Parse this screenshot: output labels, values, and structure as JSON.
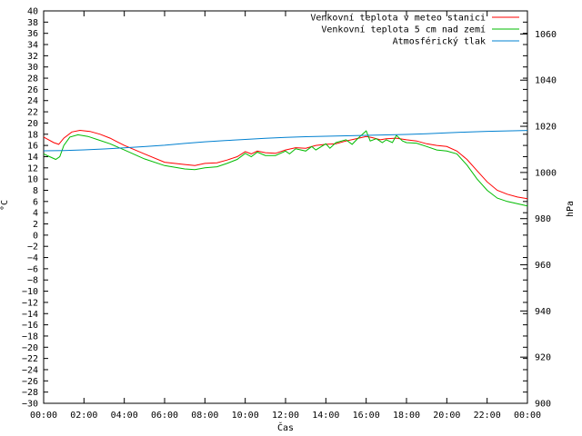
{
  "chart_data": {
    "type": "line",
    "xlabel": "Čas",
    "ylabel_left": "°C",
    "ylabel_right": "hPa",
    "x_ticks": [
      "00:00",
      "02:00",
      "04:00",
      "06:00",
      "08:00",
      "10:00",
      "12:00",
      "14:00",
      "16:00",
      "18:00",
      "20:00",
      "22:00",
      "00:00"
    ],
    "xlim_hours": [
      0,
      24
    ],
    "ylim_left": [
      -30,
      40
    ],
    "ylim_right": [
      900,
      1070
    ],
    "y_left_step": 2,
    "y_right_ticks": [
      900,
      920,
      940,
      960,
      980,
      1000,
      1020,
      1040,
      1060
    ],
    "grid": false,
    "legend": "top-right",
    "series": [
      {
        "name": "Venkovní teplota v meteo stanici",
        "axis": "left",
        "color": "#ff0000",
        "points": [
          [
            0,
            17.5
          ],
          [
            0.5,
            16.5
          ],
          [
            0.75,
            16.2
          ],
          [
            1,
            17.3
          ],
          [
            1.4,
            18.4
          ],
          [
            1.8,
            18.7
          ],
          [
            2.3,
            18.5
          ],
          [
            2.8,
            18
          ],
          [
            3.3,
            17.3
          ],
          [
            4,
            16
          ],
          [
            5,
            14.5
          ],
          [
            6,
            13
          ],
          [
            7,
            12.6
          ],
          [
            7.5,
            12.4
          ],
          [
            8,
            12.8
          ],
          [
            8.6,
            12.9
          ],
          [
            9.1,
            13.4
          ],
          [
            9.6,
            14
          ],
          [
            10,
            14.9
          ],
          [
            10.3,
            14.5
          ],
          [
            10.6,
            15
          ],
          [
            11,
            14.7
          ],
          [
            11.5,
            14.6
          ],
          [
            12,
            15.2
          ],
          [
            12.5,
            15.6
          ],
          [
            13,
            15.5
          ],
          [
            13.5,
            16
          ],
          [
            14,
            16.2
          ],
          [
            14.5,
            16.3
          ],
          [
            15,
            16.8
          ],
          [
            15.5,
            17.2
          ],
          [
            16,
            17.6
          ],
          [
            16.3,
            17.4
          ],
          [
            16.7,
            17
          ],
          [
            17,
            17.2
          ],
          [
            17.5,
            17.3
          ],
          [
            18,
            17
          ],
          [
            18.5,
            16.8
          ],
          [
            19,
            16.3
          ],
          [
            19.5,
            16
          ],
          [
            20,
            15.8
          ],
          [
            20.5,
            15
          ],
          [
            21,
            13.5
          ],
          [
            21.5,
            11.5
          ],
          [
            22,
            9.5
          ],
          [
            22.5,
            8
          ],
          [
            23,
            7.3
          ],
          [
            23.5,
            6.8
          ],
          [
            24,
            6.5
          ]
        ]
      },
      {
        "name": "Venkovní teplota 5 cm nad zemí",
        "axis": "left",
        "color": "#00bb00",
        "points": [
          [
            0,
            14.5
          ],
          [
            0.3,
            14
          ],
          [
            0.6,
            13.5
          ],
          [
            0.8,
            14
          ],
          [
            1,
            16
          ],
          [
            1.3,
            17.5
          ],
          [
            1.7,
            17.9
          ],
          [
            2.2,
            17.6
          ],
          [
            2.7,
            17
          ],
          [
            3.3,
            16.3
          ],
          [
            4,
            15.2
          ],
          [
            5,
            13.6
          ],
          [
            6,
            12.4
          ],
          [
            7,
            11.8
          ],
          [
            7.5,
            11.7
          ],
          [
            8,
            12
          ],
          [
            8.6,
            12.2
          ],
          [
            9.1,
            12.8
          ],
          [
            9.6,
            13.5
          ],
          [
            10,
            14.6
          ],
          [
            10.3,
            14
          ],
          [
            10.6,
            14.8
          ],
          [
            11,
            14.2
          ],
          [
            11.5,
            14.2
          ],
          [
            12,
            15
          ],
          [
            12.2,
            14.5
          ],
          [
            12.5,
            15.4
          ],
          [
            13,
            15
          ],
          [
            13.3,
            15.8
          ],
          [
            13.5,
            15.2
          ],
          [
            14,
            16.3
          ],
          [
            14.2,
            15.5
          ],
          [
            14.5,
            16.5
          ],
          [
            15,
            17
          ],
          [
            15.3,
            16.2
          ],
          [
            15.6,
            17.3
          ],
          [
            16,
            18.6
          ],
          [
            16.2,
            16.8
          ],
          [
            16.5,
            17.2
          ],
          [
            16.8,
            16.5
          ],
          [
            17,
            17
          ],
          [
            17.3,
            16.5
          ],
          [
            17.5,
            17.8
          ],
          [
            17.8,
            16.8
          ],
          [
            18,
            16.5
          ],
          [
            18.5,
            16.4
          ],
          [
            19,
            15.8
          ],
          [
            19.5,
            15.2
          ],
          [
            20,
            15
          ],
          [
            20.5,
            14.5
          ],
          [
            21,
            12.5
          ],
          [
            21.5,
            10
          ],
          [
            22,
            8
          ],
          [
            22.5,
            6.6
          ],
          [
            23,
            6
          ],
          [
            23.5,
            5.6
          ],
          [
            24,
            5.2
          ]
        ]
      },
      {
        "name": "Atmosférický tlak",
        "axis": "right",
        "color": "#0080d0",
        "points": [
          [
            0,
            1009.4
          ],
          [
            1,
            1009.5
          ],
          [
            2,
            1009.8
          ],
          [
            3,
            1010.2
          ],
          [
            4,
            1010.7
          ],
          [
            5,
            1011.2
          ],
          [
            6,
            1011.8
          ],
          [
            7,
            1012.6
          ],
          [
            8,
            1013.3
          ],
          [
            9,
            1013.8
          ],
          [
            10,
            1014.3
          ],
          [
            11,
            1014.8
          ],
          [
            12,
            1015.2
          ],
          [
            13,
            1015.5
          ],
          [
            14,
            1015.7
          ],
          [
            15,
            1015.9
          ],
          [
            16,
            1016.1
          ],
          [
            17,
            1016.3
          ],
          [
            18,
            1016.5
          ],
          [
            19,
            1016.8
          ],
          [
            20,
            1017.2
          ],
          [
            21,
            1017.5
          ],
          [
            22,
            1017.8
          ],
          [
            23,
            1018
          ],
          [
            24,
            1018.2
          ]
        ]
      }
    ]
  }
}
